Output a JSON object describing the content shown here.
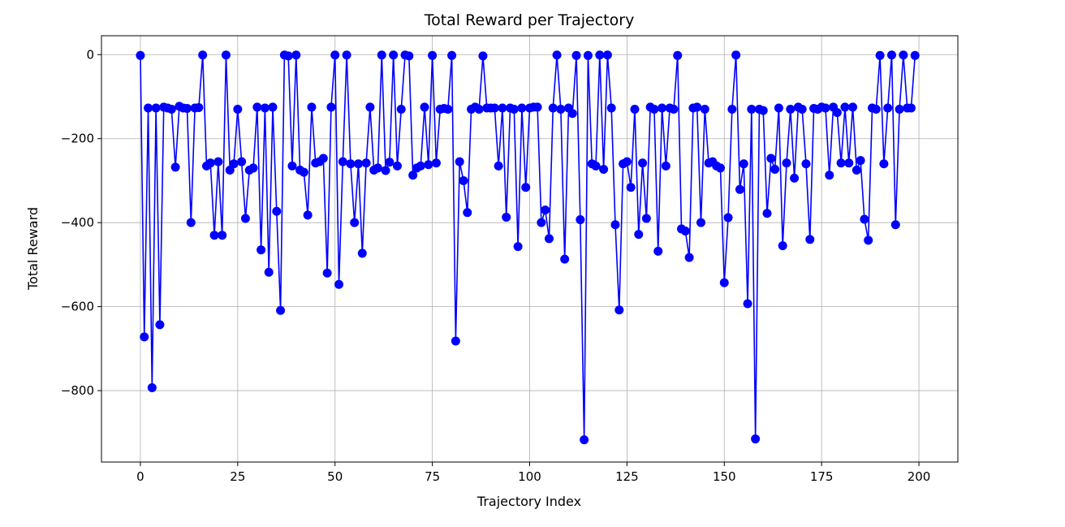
{
  "chart_data": {
    "type": "line",
    "title": "Total Reward per Trajectory",
    "xlabel": "Trajectory Index",
    "ylabel": "Total Reward",
    "xlim": [
      -10,
      210
    ],
    "ylim": [
      -970,
      45
    ],
    "xticks": [
      0,
      25,
      50,
      75,
      100,
      125,
      150,
      175,
      200
    ],
    "xtick_labels": [
      "0",
      "25",
      "50",
      "75",
      "100",
      "125",
      "150",
      "175",
      "200"
    ],
    "yticks": [
      0,
      -200,
      -400,
      -600,
      -800
    ],
    "ytick_labels": [
      "0",
      "−200",
      "−400",
      "−600",
      "−800"
    ],
    "grid": true,
    "series": [
      {
        "color": "#0000ff",
        "marker": "circle",
        "x": [
          0,
          1,
          2,
          3,
          4,
          5,
          6,
          7,
          8,
          9,
          10,
          11,
          12,
          13,
          14,
          15,
          16,
          17,
          18,
          19,
          20,
          21,
          22,
          23,
          24,
          25,
          26,
          27,
          28,
          29,
          30,
          31,
          32,
          33,
          34,
          35,
          36,
          37,
          38,
          39,
          40,
          41,
          42,
          43,
          44,
          45,
          46,
          47,
          48,
          49,
          50,
          51,
          52,
          53,
          54,
          55,
          56,
          57,
          58,
          59,
          60,
          61,
          62,
          63,
          64,
          65,
          66,
          67,
          68,
          69,
          70,
          71,
          72,
          73,
          74,
          75,
          76,
          77,
          78,
          79,
          80,
          81,
          82,
          83,
          84,
          85,
          86,
          87,
          88,
          89,
          90,
          91,
          92,
          93,
          94,
          95,
          96,
          97,
          98,
          99,
          100,
          101,
          102,
          103,
          104,
          105,
          106,
          107,
          108,
          109,
          110,
          111,
          112,
          113,
          114,
          115,
          116,
          117,
          118,
          119,
          120,
          121,
          122,
          123,
          124,
          125,
          126,
          127,
          128,
          129,
          130,
          131,
          132,
          133,
          134,
          135,
          136,
          137,
          138,
          139,
          140,
          141,
          142,
          143,
          144,
          145,
          146,
          147,
          148,
          149,
          150,
          151,
          152,
          153,
          154,
          155,
          156,
          157,
          158,
          159,
          160,
          161,
          162,
          163,
          164,
          165,
          166,
          167,
          168,
          169,
          170,
          171,
          172,
          173,
          174,
          175,
          176,
          177,
          178,
          179,
          180,
          181,
          182,
          183,
          184,
          185,
          186,
          187,
          188,
          189,
          190,
          191,
          192,
          193,
          194,
          195,
          196,
          197,
          198,
          199
        ],
        "y": [
          -2,
          -672,
          -127,
          -793,
          -127,
          -643,
          -125,
          -127,
          -130,
          -268,
          -123,
          -127,
          -128,
          -400,
          -127,
          -126,
          -1,
          -265,
          -258,
          -430,
          -255,
          -430,
          -1,
          -275,
          -260,
          -130,
          -255,
          -390,
          -275,
          -270,
          -125,
          -465,
          -127,
          -518,
          -125,
          -373,
          -609,
          -1,
          -3,
          -265,
          -1,
          -275,
          -280,
          -382,
          -125,
          -258,
          -255,
          -247,
          -520,
          -125,
          -1,
          -547,
          -255,
          -1,
          -260,
          -400,
          -260,
          -473,
          -258,
          -125,
          -275,
          -270,
          -1,
          -276,
          -256,
          -1,
          -265,
          -130,
          -1,
          -3,
          -287,
          -270,
          -265,
          -125,
          -262,
          -2,
          -258,
          -130,
          -128,
          -130,
          -2,
          -682,
          -255,
          -300,
          -376,
          -130,
          -125,
          -130,
          -3,
          -127,
          -127,
          -127,
          -265,
          -127,
          -387,
          -127,
          -130,
          -457,
          -127,
          -316,
          -127,
          -125,
          -125,
          -400,
          -370,
          -438,
          -127,
          -1,
          -130,
          -487,
          -127,
          -140,
          -2,
          -393,
          -917,
          -2,
          -260,
          -265,
          -1,
          -273,
          -1,
          -127,
          -405,
          -608,
          -260,
          -255,
          -316,
          -130,
          -428,
          -258,
          -390,
          -125,
          -130,
          -468,
          -127,
          -265,
          -127,
          -130,
          -2,
          -415,
          -420,
          -483,
          -127,
          -125,
          -400,
          -130,
          -258,
          -255,
          -265,
          -270,
          -543,
          -388,
          -130,
          -1,
          -321,
          -260,
          -593,
          -130,
          -915,
          -130,
          -133,
          -378,
          -247,
          -273,
          -127,
          -455,
          -258,
          -130,
          -294,
          -125,
          -130,
          -260,
          -440,
          -128,
          -130,
          -125,
          -127,
          -287,
          -125,
          -138,
          -258,
          -125,
          -258,
          -125,
          -275,
          -252,
          -392,
          -442,
          -127,
          -130,
          -2,
          -260,
          -127,
          -1,
          -405,
          -130,
          -1,
          -127,
          -127,
          -2
        ]
      }
    ]
  }
}
